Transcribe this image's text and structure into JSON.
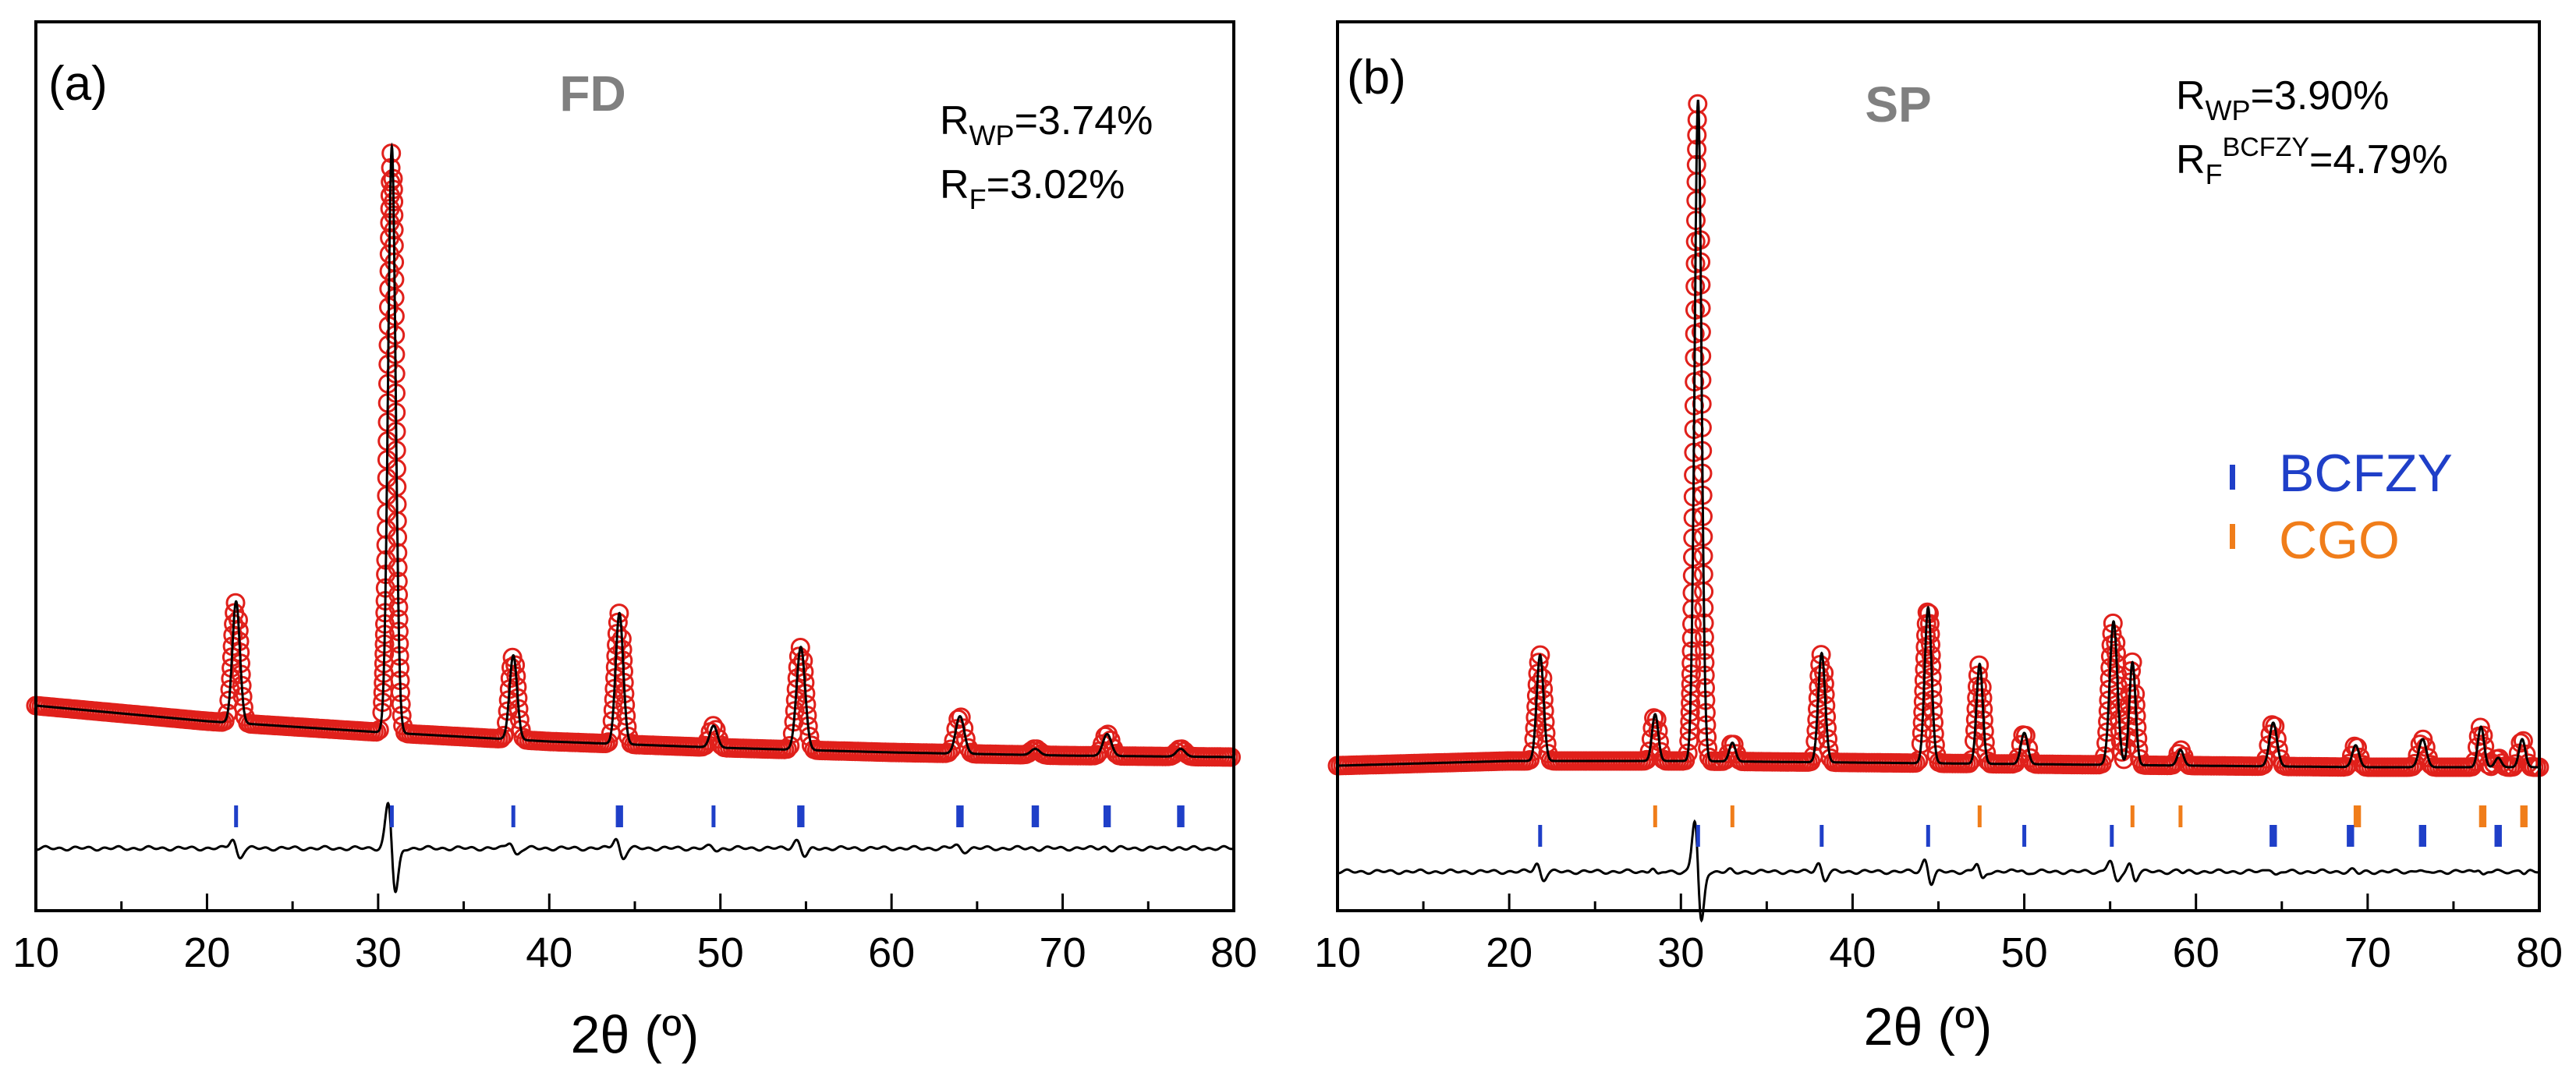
{
  "chart_data": [
    {
      "type": "scatter",
      "panel_label": "(a)",
      "sample_label": "FD",
      "r_wp": {
        "base": "R",
        "sub": "WP",
        "value": "=3.74%"
      },
      "r_f": {
        "base": "R",
        "sub": "F",
        "sup": "",
        "value": "=3.02%"
      },
      "xlabel": "2θ (º)",
      "xlim": [
        10,
        80
      ],
      "x_ticks": [
        "10",
        "20",
        "30",
        "40",
        "50",
        "60",
        "70",
        "80"
      ],
      "series": [
        {
          "name": "observed",
          "marker": "open-circle",
          "color": "#e0201b"
        },
        {
          "name": "calculated",
          "marker": "line",
          "color": "#000000"
        },
        {
          "name": "difference",
          "marker": "line",
          "color": "#000000"
        }
      ],
      "background": {
        "points": [
          [
            10,
            0.2
          ],
          [
            20,
            0.15
          ],
          [
            30,
            0.115
          ],
          [
            40,
            0.085
          ],
          [
            50,
            0.065
          ],
          [
            60,
            0.05
          ],
          [
            70,
            0.04
          ],
          [
            80,
            0.035
          ]
        ]
      },
      "peaks": [
        {
          "x": 21.7,
          "h": 0.39,
          "w": 0.22
        },
        {
          "x": 30.8,
          "h": 1.88,
          "w": 0.22
        },
        {
          "x": 37.9,
          "h": 0.27,
          "w": 0.22
        },
        {
          "x": 44.1,
          "h": 0.42,
          "w": 0.22
        },
        {
          "x": 49.6,
          "h": 0.07,
          "w": 0.22
        },
        {
          "x": 54.7,
          "h": 0.33,
          "w": 0.25
        },
        {
          "x": 64.0,
          "h": 0.12,
          "w": 0.25
        },
        {
          "x": 68.4,
          "h": 0.02,
          "w": 0.25
        },
        {
          "x": 72.6,
          "h": 0.07,
          "w": 0.25
        },
        {
          "x": 76.9,
          "h": 0.025,
          "w": 0.25
        }
      ],
      "phase_ticks": [
        {
          "phase": "BCFZY",
          "color": "#1f3fc8",
          "positions": [
            21.7,
            30.8,
            37.9,
            44.0,
            44.2,
            49.6,
            54.6,
            54.8,
            63.9,
            64.1,
            68.3,
            68.5,
            72.5,
            72.7,
            76.8,
            77.0
          ]
        }
      ],
      "legend": []
    },
    {
      "type": "scatter",
      "panel_label": "(b)",
      "sample_label": "SP",
      "r_wp": {
        "base": "R",
        "sub": "WP",
        "value": "=3.90%"
      },
      "r_f": {
        "base": "R",
        "sub": "F",
        "sup": "BCFZY",
        "value": "=4.79%"
      },
      "xlabel": "2θ (º)",
      "xlim": [
        10,
        80
      ],
      "x_ticks": [
        "10",
        "20",
        "30",
        "40",
        "50",
        "60",
        "70",
        "80"
      ],
      "series": [
        {
          "name": "observed",
          "marker": "open-circle",
          "color": "#e0201b"
        },
        {
          "name": "calculated",
          "marker": "line",
          "color": "#000000"
        },
        {
          "name": "difference",
          "marker": "line",
          "color": "#000000"
        }
      ],
      "background": {
        "points": [
          [
            10,
            0.045
          ],
          [
            20,
            0.06
          ],
          [
            30,
            0.06
          ],
          [
            40,
            0.055
          ],
          [
            50,
            0.05
          ],
          [
            60,
            0.045
          ],
          [
            70,
            0.04
          ],
          [
            80,
            0.04
          ]
        ]
      },
      "peaks": [
        {
          "x": 21.8,
          "h": 0.34,
          "w": 0.2
        },
        {
          "x": 28.5,
          "h": 0.15,
          "w": 0.18
        },
        {
          "x": 31.0,
          "h": 2.12,
          "w": 0.2
        },
        {
          "x": 33.0,
          "h": 0.06,
          "w": 0.18
        },
        {
          "x": 38.2,
          "h": 0.35,
          "w": 0.2
        },
        {
          "x": 44.4,
          "h": 0.5,
          "w": 0.2
        },
        {
          "x": 47.4,
          "h": 0.32,
          "w": 0.18
        },
        {
          "x": 50.0,
          "h": 0.1,
          "w": 0.2
        },
        {
          "x": 55.2,
          "h": 0.46,
          "w": 0.22
        },
        {
          "x": 56.3,
          "h": 0.33,
          "w": 0.18
        },
        {
          "x": 59.1,
          "h": 0.05,
          "w": 0.18
        },
        {
          "x": 64.5,
          "h": 0.14,
          "w": 0.22
        },
        {
          "x": 69.3,
          "h": 0.07,
          "w": 0.2
        },
        {
          "x": 73.2,
          "h": 0.09,
          "w": 0.22
        },
        {
          "x": 76.6,
          "h": 0.13,
          "w": 0.18
        },
        {
          "x": 77.6,
          "h": 0.03,
          "w": 0.18
        },
        {
          "x": 79.0,
          "h": 0.09,
          "w": 0.18
        }
      ],
      "phase_ticks": [
        {
          "phase": "CGO",
          "color": "#f07d1a",
          "positions": [
            28.5,
            33.0,
            47.4,
            56.3,
            59.1,
            69.3,
            69.5,
            76.6,
            76.8,
            79.0,
            79.2
          ]
        },
        {
          "phase": "BCFZY",
          "color": "#1f3fc8",
          "positions": [
            21.8,
            31.0,
            38.2,
            44.4,
            50.0,
            55.1,
            64.4,
            64.6,
            68.9,
            69.1,
            73.1,
            73.3,
            77.5,
            77.7
          ]
        }
      ],
      "legend": [
        {
          "label": "BCFZY",
          "color": "#1f3fc8"
        },
        {
          "label": "CGO",
          "color": "#f07d1a"
        }
      ]
    }
  ]
}
